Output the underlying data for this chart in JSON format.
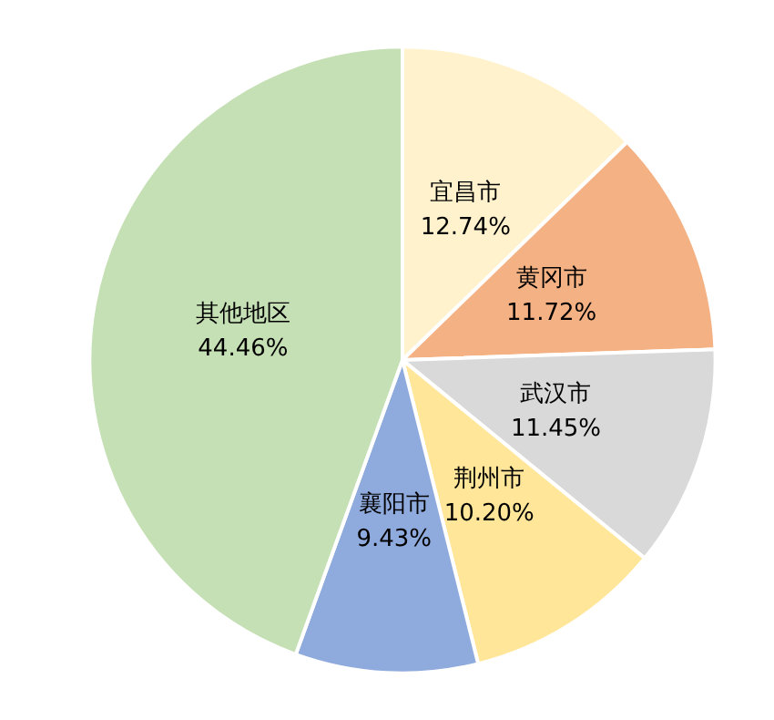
{
  "chart_data": {
    "type": "pie",
    "categories": [
      "宜昌市",
      "黄冈市",
      "武汉市",
      "荆州市",
      "襄阳市",
      "其他地区"
    ],
    "values": [
      12.74,
      11.72,
      11.45,
      10.2,
      9.43,
      44.46
    ],
    "value_labels": [
      "12.74%",
      "11.72%",
      "11.45%",
      "10.20%",
      "9.43%",
      "44.46%"
    ],
    "colors": [
      "#fff2cc",
      "#f4b183",
      "#d9d9d9",
      "#ffe699",
      "#8faadc",
      "#c5e0b4"
    ],
    "legend": false
  }
}
